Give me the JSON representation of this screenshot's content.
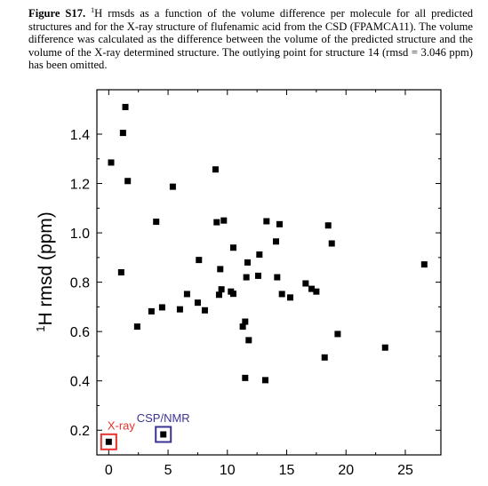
{
  "caption": {
    "label": "Figure S17.",
    "superscript": "1",
    "text": "H rmsds as a function of the volume difference per molecule for all predicted structures and for the X-ray structure of flufenamic acid from the CSD (FPAMCA11). The volume difference was calculated as the difference between the volume of the predicted structure and the volume of the X-ray determined structure. The outlying point for structure 14 (rmsd = 3.046 ppm) has been omitted."
  },
  "chart_data": {
    "type": "scatter",
    "title": "",
    "xlabel": "",
    "ylabel": "H rmsd (ppm)",
    "ylabel_superscript": "1",
    "xlim": [
      -1,
      28
    ],
    "ylim": [
      0.1,
      1.58
    ],
    "x_ticks": [
      0,
      5,
      10,
      15,
      20,
      25
    ],
    "y_ticks": [
      0.2,
      0.4,
      0.6,
      0.8,
      1.0,
      1.2,
      1.4
    ],
    "y_tick_labels": [
      "0.2",
      "0.4",
      "0.6",
      "0.8",
      "1.0",
      "1.2",
      "1.4"
    ],
    "points": [
      {
        "x": 0.2,
        "y": 1.285
      },
      {
        "x": 1.05,
        "y": 0.84
      },
      {
        "x": 1.2,
        "y": 1.405
      },
      {
        "x": 1.4,
        "y": 1.51
      },
      {
        "x": 1.6,
        "y": 1.21
      },
      {
        "x": 2.4,
        "y": 0.62
      },
      {
        "x": 3.6,
        "y": 0.682
      },
      {
        "x": 4.0,
        "y": 1.045
      },
      {
        "x": 4.5,
        "y": 0.698
      },
      {
        "x": 5.4,
        "y": 1.187
      },
      {
        "x": 6.0,
        "y": 0.69
      },
      {
        "x": 6.6,
        "y": 0.752
      },
      {
        "x": 7.5,
        "y": 0.717
      },
      {
        "x": 7.6,
        "y": 0.89
      },
      {
        "x": 8.1,
        "y": 0.686
      },
      {
        "x": 9.0,
        "y": 1.257
      },
      {
        "x": 9.1,
        "y": 1.043
      },
      {
        "x": 9.3,
        "y": 0.749
      },
      {
        "x": 9.4,
        "y": 0.853
      },
      {
        "x": 9.5,
        "y": 0.771
      },
      {
        "x": 9.7,
        "y": 1.05
      },
      {
        "x": 10.3,
        "y": 0.762
      },
      {
        "x": 10.5,
        "y": 0.753
      },
      {
        "x": 10.5,
        "y": 0.94
      },
      {
        "x": 11.3,
        "y": 0.62
      },
      {
        "x": 11.5,
        "y": 0.64
      },
      {
        "x": 11.5,
        "y": 0.412
      },
      {
        "x": 11.6,
        "y": 0.82
      },
      {
        "x": 11.7,
        "y": 0.88
      },
      {
        "x": 11.8,
        "y": 0.565
      },
      {
        "x": 12.6,
        "y": 0.826
      },
      {
        "x": 12.7,
        "y": 0.912
      },
      {
        "x": 13.2,
        "y": 0.403
      },
      {
        "x": 13.3,
        "y": 1.047
      },
      {
        "x": 14.1,
        "y": 0.965
      },
      {
        "x": 14.2,
        "y": 0.82
      },
      {
        "x": 14.4,
        "y": 1.035
      },
      {
        "x": 14.6,
        "y": 0.752
      },
      {
        "x": 15.3,
        "y": 0.738
      },
      {
        "x": 16.6,
        "y": 0.795
      },
      {
        "x": 17.1,
        "y": 0.773
      },
      {
        "x": 17.5,
        "y": 0.762
      },
      {
        "x": 18.2,
        "y": 0.495
      },
      {
        "x": 18.5,
        "y": 1.03
      },
      {
        "x": 18.8,
        "y": 0.957
      },
      {
        "x": 19.3,
        "y": 0.59
      },
      {
        "x": 23.3,
        "y": 0.535
      },
      {
        "x": 26.6,
        "y": 0.872
      }
    ],
    "highlighted": [
      {
        "x": 0.0,
        "y": 0.153,
        "label": "X-ray",
        "color": "#e8322c"
      },
      {
        "x": 4.6,
        "y": 0.183,
        "label": "CSP/NMR",
        "color": "#3a3394"
      }
    ],
    "grid": false,
    "marker": "square",
    "marker_color": "#000000"
  }
}
